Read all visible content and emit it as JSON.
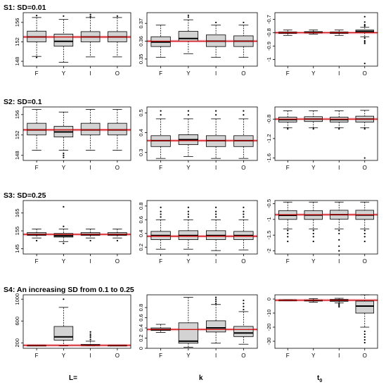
{
  "rows": [
    {
      "title": "S1: SD=0.01"
    },
    {
      "title": "S2: SD=0.1"
    },
    {
      "title": "S3: SD=0.25"
    },
    {
      "title": "S4: An increasing SD from 0.1 to 0.25"
    }
  ],
  "columns": [
    {
      "label": "L=",
      "sub": ""
    },
    {
      "label": "k",
      "sub": ""
    },
    {
      "label": "t",
      "sub": "0"
    }
  ],
  "colors": {
    "box_fill": "#d3d3d3",
    "reference_line": "#cc0000",
    "axis": "#000000"
  },
  "chart_data": [
    {
      "type": "boxplot",
      "row": 1,
      "col": 1,
      "categories": [
        "F",
        "Y",
        "I",
        "O"
      ],
      "ylim": [
        147,
        158
      ],
      "yticks": [
        148,
        152,
        156
      ],
      "reference": 153.0,
      "boxes": [
        {
          "whislo": 149.0,
          "q1": 152.0,
          "med": 153.0,
          "q3": 154.2,
          "whishi": 157.0,
          "outliers": [
            148.8,
            157.4
          ]
        },
        {
          "whislo": 147.8,
          "q1": 151.1,
          "med": 152.1,
          "q3": 153.6,
          "whishi": 156.6,
          "outliers": [
            157.3
          ]
        },
        {
          "whislo": 148.9,
          "q1": 152.0,
          "med": 153.0,
          "q3": 154.1,
          "whishi": 157.0,
          "outliers": [
            157.6,
            157.2
          ]
        },
        {
          "whislo": 148.9,
          "q1": 152.0,
          "med": 153.0,
          "q3": 154.1,
          "whishi": 157.0,
          "outliers": [
            157.3
          ]
        }
      ]
    },
    {
      "type": "boxplot",
      "row": 1,
      "col": 2,
      "categories": [
        "F",
        "Y",
        "I",
        "O"
      ],
      "ylim": [
        0.346,
        0.376
      ],
      "yticks": [
        0.35,
        0.36,
        0.37
      ],
      "reference": 0.36,
      "boxes": [
        {
          "whislo": 0.351,
          "q1": 0.357,
          "med": 0.3595,
          "q3": 0.3625,
          "whishi": 0.369,
          "outliers": []
        },
        {
          "whislo": 0.353,
          "q1": 0.36,
          "med": 0.3615,
          "q3": 0.3655,
          "whishi": 0.372,
          "outliers": [
            0.3735,
            0.3745
          ]
        },
        {
          "whislo": 0.351,
          "q1": 0.357,
          "med": 0.36,
          "q3": 0.3635,
          "whishi": 0.369,
          "outliers": [
            0.3705
          ]
        },
        {
          "whislo": 0.351,
          "q1": 0.357,
          "med": 0.36,
          "q3": 0.363,
          "whishi": 0.369,
          "outliers": [
            0.3705
          ]
        }
      ]
    },
    {
      "type": "boxplot",
      "row": 1,
      "col": 3,
      "categories": [
        "F",
        "Y",
        "I",
        "O"
      ],
      "ylim": [
        -1.05,
        -0.65
      ],
      "yticks": [
        -0.7,
        -0.8,
        -0.9,
        -1.0
      ],
      "reference": -0.8,
      "boxes": [
        {
          "whislo": -0.82,
          "q1": -0.805,
          "med": -0.8,
          "q3": -0.795,
          "whishi": -0.78,
          "outliers": []
        },
        {
          "whislo": -0.81,
          "q1": -0.802,
          "med": -0.798,
          "q3": -0.792,
          "whishi": -0.78,
          "outliers": []
        },
        {
          "whislo": -0.82,
          "q1": -0.805,
          "med": -0.8,
          "q3": -0.795,
          "whishi": -0.78,
          "outliers": []
        },
        {
          "whislo": -0.83,
          "q1": -0.8,
          "med": -0.79,
          "q3": -0.78,
          "whishi": -0.76,
          "outliers": [
            -0.68,
            -0.72,
            -0.74,
            -0.75,
            -0.84,
            -0.86,
            -0.87,
            -0.88,
            -1.03
          ]
        }
      ]
    },
    {
      "type": "boxplot",
      "row": 2,
      "col": 1,
      "categories": [
        "F",
        "Y",
        "I",
        "O"
      ],
      "ylim": [
        147,
        157.5
      ],
      "yticks": [
        148,
        152,
        156
      ],
      "reference": 153.0,
      "boxes": [
        {
          "whislo": 149.0,
          "q1": 152.0,
          "med": 153.0,
          "q3": 154.3,
          "whishi": 157.0,
          "outliers": []
        },
        {
          "whislo": 149.0,
          "q1": 151.6,
          "med": 152.6,
          "q3": 153.7,
          "whishi": 156.5,
          "outliers": [
            148.4,
            148.0,
            147.6
          ]
        },
        {
          "whislo": 149.0,
          "q1": 152.0,
          "med": 153.0,
          "q3": 154.3,
          "whishi": 157.0,
          "outliers": []
        },
        {
          "whislo": 149.0,
          "q1": 152.0,
          "med": 153.0,
          "q3": 154.3,
          "whishi": 157.0,
          "outliers": []
        }
      ]
    },
    {
      "type": "boxplot",
      "row": 2,
      "col": 2,
      "categories": [
        "F",
        "Y",
        "I",
        "O"
      ],
      "ylim": [
        0.26,
        0.53
      ],
      "yticks": [
        0.3,
        0.4,
        0.5
      ],
      "reference": 0.36,
      "boxes": [
        {
          "whislo": 0.27,
          "q1": 0.33,
          "med": 0.36,
          "q3": 0.385,
          "whishi": 0.47,
          "outliers": [
            0.49,
            0.51
          ]
        },
        {
          "whislo": 0.28,
          "q1": 0.34,
          "med": 0.365,
          "q3": 0.39,
          "whishi": 0.47,
          "outliers": [
            0.49,
            0.51
          ]
        },
        {
          "whislo": 0.27,
          "q1": 0.33,
          "med": 0.36,
          "q3": 0.385,
          "whishi": 0.47,
          "outliers": [
            0.49,
            0.51
          ]
        },
        {
          "whislo": 0.27,
          "q1": 0.33,
          "med": 0.36,
          "q3": 0.385,
          "whishi": 0.47,
          "outliers": [
            0.49,
            0.51
          ]
        }
      ]
    },
    {
      "type": "boxplot",
      "row": 2,
      "col": 3,
      "categories": [
        "F",
        "Y",
        "I",
        "O"
      ],
      "ylim": [
        -1.65,
        -0.55
      ],
      "yticks": [
        -0.8,
        -1.2,
        -1.6
      ],
      "reference": -0.8,
      "boxes": [
        {
          "whislo": -0.98,
          "q1": -0.86,
          "med": -0.81,
          "q3": -0.76,
          "whishi": -0.63,
          "outliers": [
            -1.0
          ]
        },
        {
          "whislo": -0.98,
          "q1": -0.85,
          "med": -0.8,
          "q3": -0.75,
          "whishi": -0.63,
          "outliers": [
            -1.0
          ]
        },
        {
          "whislo": -0.98,
          "q1": -0.86,
          "med": -0.81,
          "q3": -0.76,
          "whishi": -0.63,
          "outliers": [
            -1.0
          ]
        },
        {
          "whislo": -0.98,
          "q1": -0.86,
          "med": -0.8,
          "q3": -0.74,
          "whishi": -0.62,
          "outliers": [
            -1.0,
            -1.6
          ]
        }
      ]
    },
    {
      "type": "boxplot",
      "row": 3,
      "col": 1,
      "categories": [
        "F",
        "Y",
        "I",
        "O"
      ],
      "ylim": [
        142,
        172
      ],
      "yticks": [
        145,
        155,
        165
      ],
      "reference": 153.0,
      "boxes": [
        {
          "whislo": 151.0,
          "q1": 152.5,
          "med": 153.0,
          "q3": 154.0,
          "whishi": 156.0,
          "outliers": [
            149.5
          ]
        },
        {
          "whislo": 149.0,
          "q1": 151.5,
          "med": 152.2,
          "q3": 153.5,
          "whishi": 156.0,
          "outliers": [
            148.0,
            157.5,
            168.5
          ]
        },
        {
          "whislo": 151.0,
          "q1": 152.5,
          "med": 153.0,
          "q3": 154.0,
          "whishi": 156.0,
          "outliers": [
            149.5
          ]
        },
        {
          "whislo": 151.0,
          "q1": 152.5,
          "med": 153.0,
          "q3": 154.0,
          "whishi": 156.0,
          "outliers": [
            149.5
          ]
        }
      ]
    },
    {
      "type": "boxplot",
      "row": 3,
      "col": 2,
      "categories": [
        "F",
        "Y",
        "I",
        "O"
      ],
      "ylim": [
        0.1,
        0.88
      ],
      "yticks": [
        0.2,
        0.4,
        0.6,
        0.8
      ],
      "reference": 0.36,
      "boxes": [
        {
          "whislo": 0.17,
          "q1": 0.31,
          "med": 0.37,
          "q3": 0.43,
          "whishi": 0.6,
          "outliers": [
            0.64,
            0.68,
            0.72,
            0.78
          ]
        },
        {
          "whislo": 0.17,
          "q1": 0.31,
          "med": 0.37,
          "q3": 0.44,
          "whishi": 0.6,
          "outliers": [
            0.64,
            0.68,
            0.72,
            0.78
          ]
        },
        {
          "whislo": 0.15,
          "q1": 0.31,
          "med": 0.37,
          "q3": 0.44,
          "whishi": 0.6,
          "outliers": [
            0.64,
            0.68,
            0.72,
            0.78
          ]
        },
        {
          "whislo": 0.16,
          "q1": 0.31,
          "med": 0.37,
          "q3": 0.43,
          "whishi": 0.6,
          "outliers": [
            0.64,
            0.68,
            0.72,
            0.78
          ]
        }
      ]
    },
    {
      "type": "boxplot",
      "row": 3,
      "col": 3,
      "categories": [
        "F",
        "Y",
        "I",
        "O"
      ],
      "ylim": [
        -2.1,
        -0.4
      ],
      "yticks": [
        -0.5,
        -1.0,
        -1.5,
        -2.0
      ],
      "reference": -0.85,
      "boxes": [
        {
          "whislo": -1.3,
          "q1": -1.0,
          "med": -0.87,
          "q3": -0.72,
          "whishi": -0.45,
          "outliers": [
            -1.35,
            -1.45,
            -1.55,
            -1.7
          ]
        },
        {
          "whislo": -1.3,
          "q1": -1.0,
          "med": -0.86,
          "q3": -0.72,
          "whishi": -0.45,
          "outliers": [
            -1.35,
            -1.45,
            -1.55,
            -1.7
          ]
        },
        {
          "whislo": -1.3,
          "q1": -0.99,
          "med": -0.85,
          "q3": -0.71,
          "whishi": -0.45,
          "outliers": [
            -1.35,
            -1.45,
            -1.65,
            -1.85,
            -2.0
          ]
        },
        {
          "whislo": -1.3,
          "q1": -1.0,
          "med": -0.86,
          "q3": -0.71,
          "whishi": -0.45,
          "outliers": [
            -1.35,
            -1.45,
            -1.55,
            -1.7
          ]
        }
      ]
    },
    {
      "type": "boxplot",
      "row": 4,
      "col": 1,
      "categories": [
        "F",
        "Y",
        "I",
        "O"
      ],
      "ylim": [
        100,
        1080
      ],
      "yticks": [
        200,
        600,
        1000
      ],
      "reference": 155,
      "boxes": [
        {
          "whislo": 150,
          "q1": 151,
          "med": 153,
          "q3": 155,
          "whishi": 158,
          "outliers": []
        },
        {
          "whislo": 145,
          "q1": 250,
          "med": 310,
          "q3": 500,
          "whishi": 850,
          "outliers": [
            1000
          ]
        },
        {
          "whislo": 148,
          "q1": 152,
          "med": 155,
          "q3": 170,
          "whishi": 230,
          "outliers": [
            260,
            300,
            330,
            360,
            400
          ]
        },
        {
          "whislo": 150,
          "q1": 151,
          "med": 153,
          "q3": 155,
          "whishi": 158,
          "outliers": []
        }
      ]
    },
    {
      "type": "boxplot",
      "row": 4,
      "col": 2,
      "categories": [
        "F",
        "Y",
        "I",
        "O"
      ],
      "ylim": [
        0.0,
        1.05
      ],
      "yticks": [
        0.0,
        0.2,
        0.4,
        0.6,
        0.8
      ],
      "reference": 0.37,
      "boxes": [
        {
          "whislo": 0.31,
          "q1": 0.35,
          "med": 0.37,
          "q3": 0.4,
          "whishi": 0.47,
          "outliers": []
        },
        {
          "whislo": 0.02,
          "q1": 0.1,
          "med": 0.14,
          "q3": 0.5,
          "whishi": 1.0,
          "outliers": []
        },
        {
          "whislo": 0.1,
          "q1": 0.32,
          "med": 0.4,
          "q3": 0.54,
          "whishi": 0.86,
          "outliers": [
            0.88,
            0.92,
            0.96,
            1.0
          ]
        },
        {
          "whislo": 0.08,
          "q1": 0.23,
          "med": 0.3,
          "q3": 0.43,
          "whishi": 0.72,
          "outliers": [
            0.76,
            0.82,
            0.88,
            0.94
          ]
        }
      ]
    },
    {
      "type": "boxplot",
      "row": 4,
      "col": 3,
      "categories": [
        "F",
        "Y",
        "I",
        "O"
      ],
      "ylim": [
        -35,
        3
      ],
      "yticks": [
        0,
        -10,
        -20,
        -30
      ],
      "reference": -0.8,
      "boxes": [
        {
          "whislo": -1.1,
          "q1": -0.9,
          "med": -0.8,
          "q3": -0.7,
          "whishi": -0.5,
          "outliers": []
        },
        {
          "whislo": -2.2,
          "q1": -1.4,
          "med": -1.0,
          "q3": -0.6,
          "whishi": 0.3,
          "outliers": []
        },
        {
          "whislo": -2.8,
          "q1": -1.6,
          "med": -1.0,
          "q3": -0.3,
          "whishi": 0.5,
          "outliers": [
            -3.5,
            -4.5,
            -5.5
          ]
        },
        {
          "whislo": -20,
          "q1": -10,
          "med": -5,
          "q3": -1.5,
          "whishi": 3,
          "outliers": [
            -23,
            -25,
            -27,
            -29,
            -31
          ]
        }
      ]
    }
  ]
}
